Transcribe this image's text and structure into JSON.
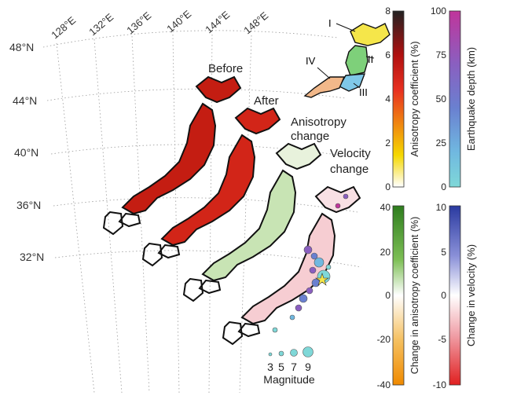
{
  "graticule": {
    "longitudes": [
      "128°E",
      "132°E",
      "136°E",
      "140°E",
      "144°E",
      "148°E"
    ],
    "latitudes": [
      "48°N",
      "44°N",
      "40°N",
      "36°N",
      "32°N"
    ]
  },
  "panels": {
    "before": "Before",
    "after": "After",
    "anisotropy_change_line1": "Anisotropy",
    "anisotropy_change_line2": "change",
    "velocity_change_line1": "Velocity",
    "velocity_change_line2": "change"
  },
  "inset_regions": [
    "I",
    "II",
    "III",
    "IV"
  ],
  "magnitude_legend": {
    "values": [
      "3",
      "5",
      "7",
      "9"
    ],
    "title": "Magnitude"
  },
  "colorbars": {
    "anisotropy": {
      "label": "Anisotropy coefficient (%)",
      "ticks": [
        "8",
        "6",
        "4",
        "2",
        "0"
      ],
      "colors": [
        "#222222",
        "#b01010",
        "#e83020",
        "#f08a10",
        "#f5d800",
        "#ffffff"
      ]
    },
    "depth": {
      "label": "Earthquake depth (km)",
      "ticks": [
        "100",
        "75",
        "50",
        "25",
        "0"
      ],
      "colors": [
        "#c0359b",
        "#8a5fc0",
        "#6a80d0",
        "#70b8e0",
        "#7fd8d8"
      ]
    },
    "aniso_change": {
      "label": "Change in anisotropy coefficient (%)",
      "ticks": [
        "40",
        "20",
        "0",
        "-20",
        "-40"
      ],
      "colors": [
        "#2e7d1e",
        "#7dbf55",
        "#ffffff",
        "#f5c060",
        "#f08a00"
      ]
    },
    "velocity_change": {
      "label": "Change in velocity (%)",
      "ticks": [
        "10",
        "5",
        "0",
        "-5",
        "-10"
      ],
      "colors": [
        "#2a3aa0",
        "#8a90d8",
        "#ffffff",
        "#f0a0a8",
        "#e02020"
      ]
    }
  },
  "colors": {
    "land_outline": "#111111",
    "grid": "#999999",
    "inset_I": "#f5e64a",
    "inset_II": "#7ed07a",
    "inset_III": "#7fc8e8",
    "inset_IV": "#f2b88a"
  }
}
